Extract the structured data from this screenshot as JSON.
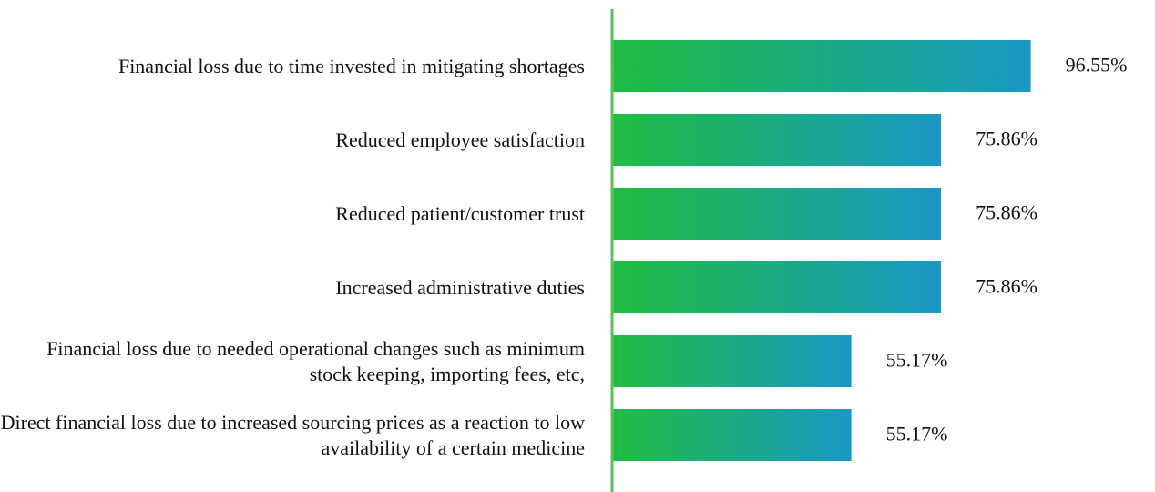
{
  "chart_data": {
    "type": "barh",
    "categories": [
      "Financial loss due to time invested in mitigating shortages",
      "Reduced employee satisfaction",
      "Reduced patient/customer trust",
      "Increased administrative duties",
      "Financial loss due to needed operational changes such as minimum stock keeping, importing fees, etc,",
      "Direct financial loss due to increased sourcing prices as a reaction to low availability of a certain medicine"
    ],
    "values": [
      96.55,
      75.86,
      75.86,
      75.86,
      55.17,
      55.17
    ],
    "value_labels": [
      "96.55%",
      "75.86%",
      "75.86%",
      "75.86%",
      "55.17%",
      "55.17%"
    ],
    "xlim": [
      0,
      100
    ],
    "color": [
      "#20bd40",
      "#1a97c6"
    ],
    "axis_color": "#5cbf5c"
  }
}
